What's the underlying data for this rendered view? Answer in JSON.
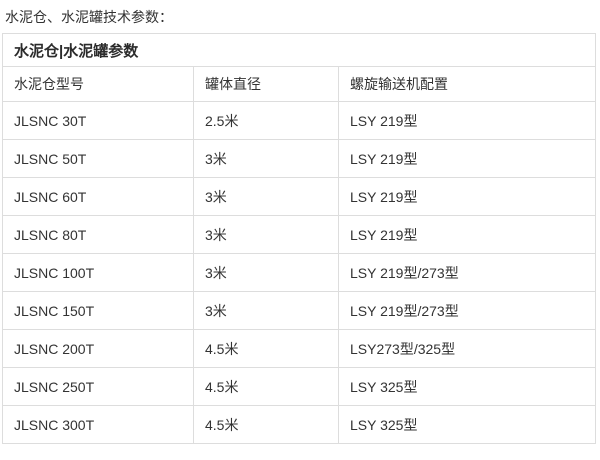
{
  "page": {
    "intro": "水泥仓、水泥罐技术参数："
  },
  "table": {
    "title": "水泥仓|水泥罐参数",
    "columns": [
      "水泥仓型号",
      "罐体直径",
      "螺旋输送机配置"
    ],
    "rows": [
      [
        "JLSNC 30T",
        "2.5米",
        "LSY 219型"
      ],
      [
        "JLSNC 50T",
        "3米",
        "LSY 219型"
      ],
      [
        "JLSNC 60T",
        "3米",
        "LSY 219型"
      ],
      [
        "JLSNC 80T",
        "3米",
        "LSY 219型"
      ],
      [
        "JLSNC 100T",
        "3米",
        "LSY 219型/273型"
      ],
      [
        "JLSNC 150T",
        "3米",
        "LSY 219型/273型"
      ],
      [
        "JLSNC 200T",
        "4.5米",
        "LSY273型/325型"
      ],
      [
        "JLSNC 250T",
        "4.5米",
        "LSY 325型"
      ],
      [
        "JLSNC 300T",
        "4.5米",
        "LSY 325型"
      ]
    ],
    "colors": {
      "text": "#333333",
      "border": "#dddddd",
      "background": "#ffffff"
    }
  }
}
